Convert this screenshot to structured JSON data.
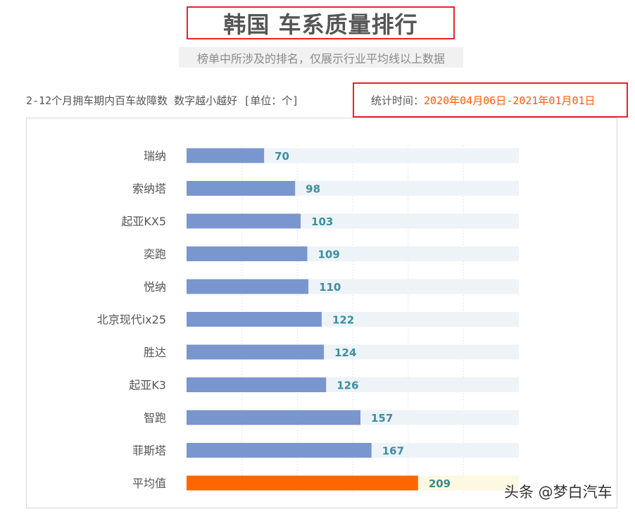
{
  "header": {
    "title": "韩国 车系质量排行",
    "subtitle": "榜单中所涉及的排名，仅展示行业平均线以上数据",
    "description": "2-12个月拥车期内百车故障数 数字越小越好 [单位：个]",
    "time_label": "统计时间：",
    "time_value": "2020年04月06日-2021年01月01日"
  },
  "watermark": "头条 @梦白汽车",
  "colors": {
    "bar": "#7a96cf",
    "bar_track": "#eef3f7",
    "average_bar": "#ff6600",
    "average_track": "#fdf8e2",
    "value_label": "#3a8fa3",
    "highlight_border": "#e8232a",
    "time_value": "#ff5a00"
  },
  "chart_data": {
    "type": "bar",
    "orientation": "horizontal",
    "title": "韩国 车系质量排行",
    "categories": [
      "瑞纳",
      "索纳塔",
      "起亚KX5",
      "奕跑",
      "悦纳",
      "北京现代ix25",
      "胜达",
      "起亚K3",
      "智跑",
      "菲斯塔",
      "平均值"
    ],
    "values": [
      70,
      98,
      103,
      109,
      110,
      122,
      124,
      126,
      157,
      167,
      209
    ],
    "highlight_category": "平均值",
    "xlim": [
      0,
      300
    ],
    "grid": true,
    "legend": "none"
  }
}
